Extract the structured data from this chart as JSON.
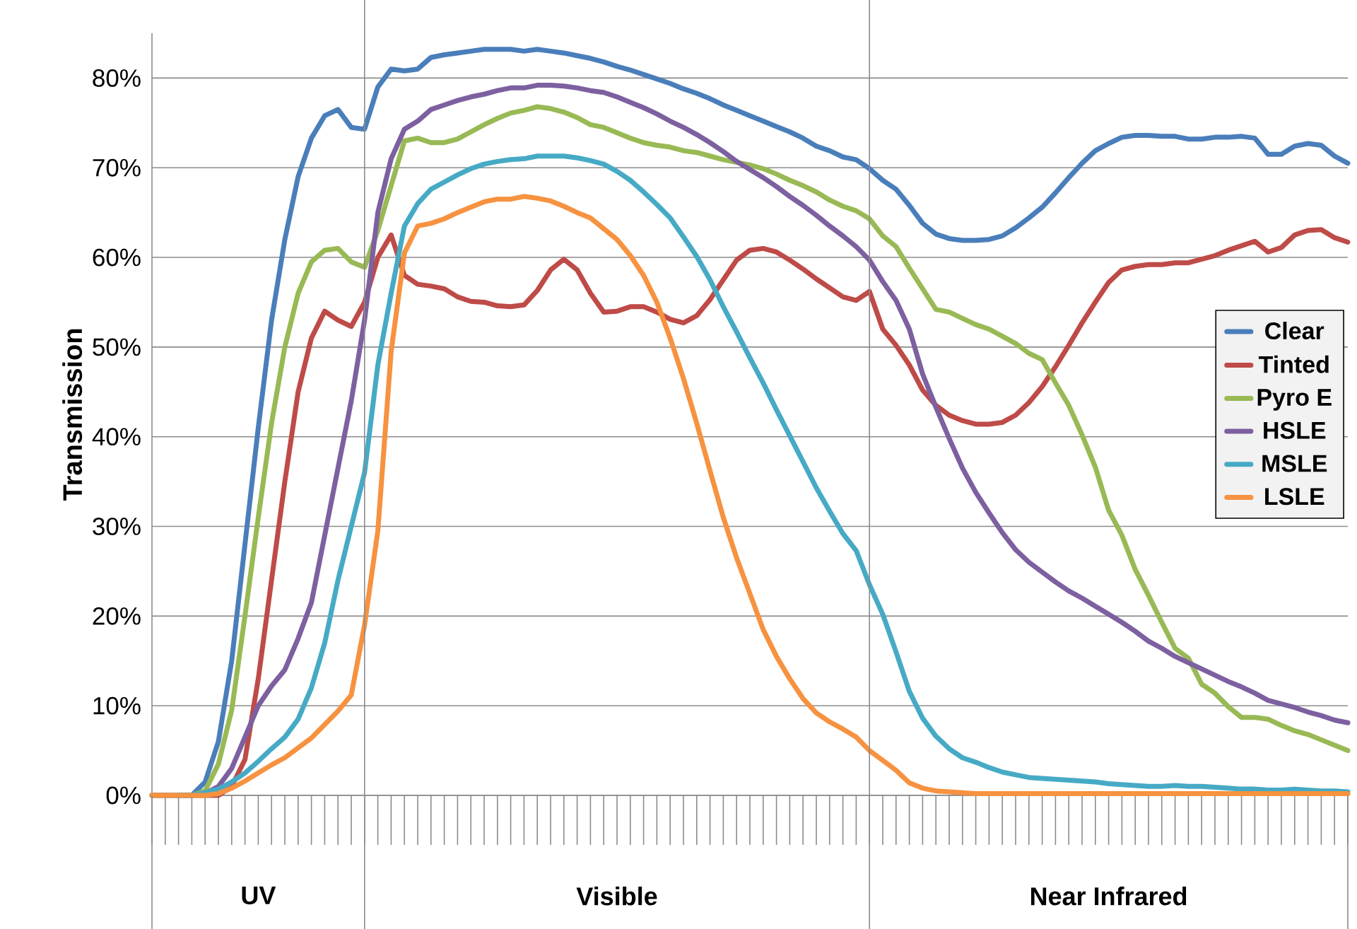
{
  "chart_data": {
    "type": "line",
    "ylabel": "Transmission",
    "categories": [
      null,
      null,
      null,
      null,
      null,
      null,
      null,
      null,
      "UV",
      null,
      null,
      null,
      null,
      null,
      null,
      null,
      null,
      null,
      null,
      null,
      null,
      null,
      null,
      null,
      null,
      null,
      null,
      null,
      null,
      null,
      null,
      null,
      null,
      null,
      null,
      "Visible",
      null,
      null,
      null,
      null,
      null,
      null,
      null,
      null,
      null,
      null,
      null,
      null,
      null,
      null,
      null,
      null,
      null,
      null,
      null,
      null,
      null,
      null,
      null,
      null,
      null,
      null,
      null,
      null,
      null,
      null,
      null,
      null,
      null,
      null,
      null,
      null,
      "Near Infrared",
      null,
      null,
      null,
      null,
      null,
      null,
      null,
      null,
      null,
      null,
      null,
      null,
      null,
      null,
      null,
      null,
      null,
      null
    ],
    "ylim": [
      0,
      85
    ],
    "yticks": [
      {
        "value": 0,
        "label": "0%"
      },
      {
        "value": 10,
        "label": "10%"
      },
      {
        "value": 20,
        "label": "20%"
      },
      {
        "value": 30,
        "label": "30%"
      },
      {
        "value": 40,
        "label": "40%"
      },
      {
        "value": 50,
        "label": "50%"
      },
      {
        "value": 60,
        "label": "60%"
      },
      {
        "value": 70,
        "label": "70%"
      },
      {
        "value": 80,
        "label": "80%"
      }
    ],
    "grid": "y",
    "legend": "right",
    "series": [
      {
        "name": "Clear",
        "color": "#4a7ebb",
        "values": [
          null,
          null,
          0,
          0,
          1.5,
          6,
          15,
          28,
          41,
          53,
          62,
          69,
          73.3,
          75.8,
          76.5,
          74.5,
          74.3,
          79,
          81,
          80.8,
          81,
          82.3,
          82.6,
          82.8,
          83,
          83.2,
          83.2,
          83.2,
          83,
          83.2,
          83,
          82.8,
          82.5,
          82.2,
          81.8,
          81.3,
          80.9,
          80.4,
          79.9,
          79.4,
          78.8,
          78.3,
          77.7,
          77,
          76.4,
          75.8,
          75.2,
          74.6,
          74,
          73.3,
          72.4,
          71.9,
          71.2,
          70.9,
          69.9,
          68.6,
          67.6,
          65.8,
          63.8,
          62.6,
          62.1,
          61.9,
          61.9,
          62,
          62.4,
          63.3,
          64.4,
          65.6,
          67.2,
          68.9,
          70.5,
          71.9,
          72.7,
          73.4,
          73.6,
          73.6,
          73.5,
          73.5,
          73.2,
          73.2,
          73.4,
          73.4,
          73.5,
          73.3,
          71.5,
          71.5,
          72.4,
          72.7,
          72.5,
          71.3,
          70.5
        ]
      },
      {
        "name": "Tinted",
        "color": "#be4b48",
        "values": [
          null,
          null,
          0,
          0,
          0,
          0,
          1,
          4,
          13,
          24,
          35,
          45,
          51,
          54,
          53,
          52.3,
          55,
          60,
          62.5,
          58,
          57,
          56.8,
          56.5,
          55.6,
          55.1,
          55,
          54.6,
          54.5,
          54.7,
          56.3,
          58.6,
          59.8,
          58.6,
          56,
          53.9,
          54,
          54.5,
          54.5,
          53.9,
          53.1,
          52.7,
          53.5,
          55.3,
          57.5,
          59.7,
          60.8,
          61,
          60.6,
          59.7,
          58.7,
          57.6,
          56.6,
          55.6,
          55.2,
          56.2,
          52,
          50.2,
          48,
          45.2,
          43.5,
          42.4,
          41.8,
          41.4,
          41.4,
          41.6,
          42.4,
          43.8,
          45.6,
          47.8,
          50.2,
          52.7,
          55,
          57.2,
          58.6,
          59,
          59.2,
          59.2,
          59.4,
          59.4,
          59.8,
          60.2,
          60.8,
          61.3,
          61.8,
          60.6,
          61.1,
          62.5,
          63,
          63.1,
          62.2,
          61.7
        ]
      },
      {
        "name": "Pyro E",
        "color": "#98b954",
        "values": [
          0,
          0,
          0,
          0,
          0.5,
          3.5,
          9.5,
          20,
          31,
          41.5,
          50,
          56,
          59.5,
          60.8,
          61,
          59.5,
          58.9,
          63,
          68,
          73,
          73.3,
          72.8,
          72.8,
          73.2,
          74,
          74.8,
          75.5,
          76.1,
          76.4,
          76.8,
          76.6,
          76.2,
          75.6,
          74.8,
          74.5,
          73.9,
          73.3,
          72.8,
          72.5,
          72.3,
          71.9,
          71.7,
          71.3,
          70.9,
          70.6,
          70.3,
          69.9,
          69.3,
          68.6,
          68,
          67.3,
          66.4,
          65.7,
          65.2,
          64.3,
          62.4,
          61.2,
          58.8,
          56.5,
          54.2,
          53.9,
          53.2,
          52.5,
          52,
          51.2,
          50.4,
          49.3,
          48.6,
          46,
          43.5,
          40.2,
          36.6,
          31.8,
          29,
          25.2,
          22.3,
          19.3,
          16.4,
          15.3,
          12.4,
          11.4,
          9.9,
          8.7,
          8.7,
          8.5,
          7.8,
          7.2,
          6.8,
          6.2,
          5.6,
          5
        ]
      },
      {
        "name": "HSLE",
        "color": "#7d60a0",
        "values": [
          0,
          0,
          0,
          0,
          0.2,
          1,
          3,
          6.5,
          10,
          12.2,
          14,
          17.5,
          21.5,
          29,
          36.5,
          44,
          53,
          65,
          71,
          74.3,
          75.2,
          76.5,
          77,
          77.5,
          77.9,
          78.2,
          78.6,
          78.9,
          78.9,
          79.2,
          79.2,
          79.1,
          78.9,
          78.6,
          78.4,
          77.9,
          77.3,
          76.7,
          76,
          75.2,
          74.5,
          73.7,
          72.8,
          71.8,
          70.7,
          69.8,
          68.9,
          67.9,
          66.8,
          65.8,
          64.7,
          63.5,
          62.4,
          61.2,
          59.7,
          57.3,
          55.2,
          52,
          47,
          43.3,
          39.8,
          36.5,
          33.8,
          31.5,
          29.3,
          27.4,
          26,
          24.9,
          23.8,
          22.8,
          22,
          21.1,
          20.2,
          19.3,
          18.3,
          17.2,
          16.4,
          15.5,
          14.8,
          14.1,
          13.4,
          12.7,
          12.1,
          11.4,
          10.6,
          10.2,
          9.8,
          9.3,
          8.9,
          8.4,
          8.1
        ]
      },
      {
        "name": "MSLE",
        "color": "#46aac5",
        "values": [
          null,
          null,
          0,
          0,
          0.3,
          0.7,
          1.5,
          2.5,
          3.8,
          5.2,
          6.5,
          8.5,
          12,
          17,
          24,
          30,
          36,
          48,
          56,
          63.5,
          66,
          67.6,
          68.4,
          69.2,
          69.9,
          70.4,
          70.7,
          70.9,
          71,
          71.3,
          71.3,
          71.3,
          71.1,
          70.8,
          70.4,
          69.6,
          68.6,
          67.3,
          65.9,
          64.4,
          62.3,
          60.1,
          57.5,
          54.5,
          51.7,
          48.8,
          46,
          43,
          40.1,
          37.2,
          34.3,
          31.7,
          29.2,
          27.3,
          23.5,
          20.2,
          16,
          11.6,
          8.6,
          6.6,
          5.2,
          4.2,
          3.7,
          3.1,
          2.6,
          2.3,
          2,
          1.9,
          1.8,
          1.7,
          1.6,
          1.5,
          1.3,
          1.2,
          1.1,
          1,
          1,
          1.1,
          1,
          1,
          0.9,
          0.8,
          0.7,
          0.7,
          0.6,
          0.6,
          0.7,
          0.6,
          0.5,
          0.5,
          0.4
        ]
      },
      {
        "name": "LSLE",
        "color": "#f69240",
        "values": [
          0,
          0,
          0,
          0,
          0,
          0.2,
          0.8,
          1.6,
          2.5,
          3.4,
          4.2,
          5.3,
          6.4,
          7.9,
          9.4,
          11.2,
          19,
          29.5,
          49.5,
          60.5,
          63.5,
          63.8,
          64.3,
          65,
          65.6,
          66.2,
          66.5,
          66.5,
          66.8,
          66.6,
          66.3,
          65.7,
          65,
          64.4,
          63.2,
          62,
          60.2,
          58,
          55,
          51,
          46.5,
          41.5,
          36.2,
          31,
          26.5,
          22.5,
          18.5,
          15.5,
          13,
          10.8,
          9.2,
          8.2,
          7.4,
          6.5,
          5,
          3.9,
          2.8,
          1.4,
          0.8,
          0.5,
          0.4,
          0.3,
          0.2,
          0.2,
          0.2,
          0.2,
          0.2,
          0.2,
          0.2,
          0.2,
          0.2,
          0.2,
          0.2,
          0.2,
          0.2,
          0.2,
          0.2,
          0.2,
          0.2,
          0.2,
          0.2,
          0.2,
          0.2,
          0.2,
          0.2,
          0.2,
          0.2,
          0.2,
          0.2,
          0.2,
          0.2
        ]
      }
    ]
  }
}
